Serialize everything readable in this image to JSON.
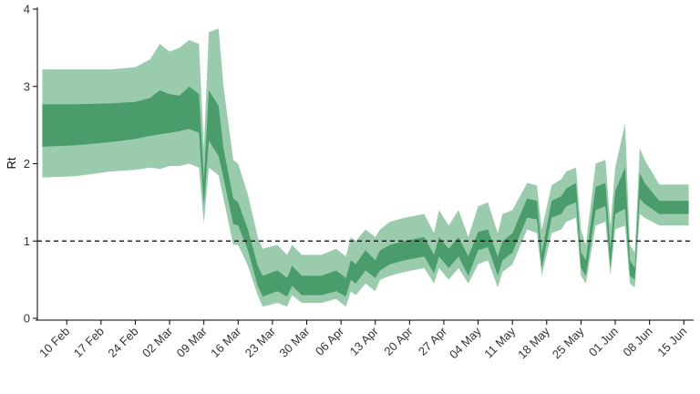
{
  "chart_data": {
    "type": "area",
    "ylabel": "Rt",
    "xlabel": "",
    "ylim": [
      0,
      4
    ],
    "xlim": [
      "2020-02-04",
      "2020-06-17"
    ],
    "y_ticks": [
      "0",
      "1",
      "2",
      "3",
      "4"
    ],
    "x_ticks": [
      "10 Feb",
      "17 Feb",
      "24 Feb",
      "02 Mar",
      "09 Mar",
      "16 Mar",
      "23 Mar",
      "30 Mar",
      "06 Apr",
      "13 Apr",
      "20 Apr",
      "27 Apr",
      "04 May",
      "11 May",
      "18 May",
      "25 May",
      "01 Jun",
      "08 Jun",
      "15 Jun"
    ],
    "x_tick_dates": [
      "2020-02-10",
      "2020-02-17",
      "2020-02-24",
      "2020-03-02",
      "2020-03-09",
      "2020-03-16",
      "2020-03-23",
      "2020-03-30",
      "2020-04-06",
      "2020-04-13",
      "2020-04-20",
      "2020-04-27",
      "2020-05-04",
      "2020-05-11",
      "2020-05-18",
      "2020-05-25",
      "2020-06-01",
      "2020-06-08",
      "2020-06-15"
    ],
    "reference_line": {
      "y": 1,
      "style": "dashed"
    },
    "grid": false,
    "legend": "none",
    "colors": {
      "outer_band": "#9acbad",
      "inner_band": "#4a9d6b",
      "reference_line": "#000000"
    },
    "x": [
      "2020-02-05",
      "2020-02-12",
      "2020-02-19",
      "2020-02-24",
      "2020-02-27",
      "2020-02-29",
      "2020-03-02",
      "2020-03-04",
      "2020-03-06",
      "2020-03-08",
      "2020-03-09",
      "2020-03-10",
      "2020-03-12",
      "2020-03-13",
      "2020-03-15",
      "2020-03-16",
      "2020-03-18",
      "2020-03-20",
      "2020-03-21",
      "2020-03-24",
      "2020-03-26",
      "2020-03-27",
      "2020-03-29",
      "2020-03-31",
      "2020-04-02",
      "2020-04-05",
      "2020-04-07",
      "2020-04-08",
      "2020-04-09",
      "2020-04-11",
      "2020-04-13",
      "2020-04-14",
      "2020-04-16",
      "2020-04-19",
      "2020-04-23",
      "2020-04-25",
      "2020-04-26",
      "2020-04-28",
      "2020-04-30",
      "2020-05-02",
      "2020-05-04",
      "2020-05-06",
      "2020-05-08",
      "2020-05-09",
      "2020-05-11",
      "2020-05-14",
      "2020-05-16",
      "2020-05-17",
      "2020-05-19",
      "2020-05-21",
      "2020-05-22",
      "2020-05-24",
      "2020-05-25",
      "2020-05-26",
      "2020-05-28",
      "2020-05-30",
      "2020-05-31",
      "2020-06-01",
      "2020-06-03",
      "2020-06-04",
      "2020-06-05",
      "2020-06-06",
      "2020-06-07",
      "2020-06-10",
      "2020-06-16"
    ],
    "lower_90": [
      1.82,
      1.84,
      1.9,
      1.92,
      1.95,
      1.93,
      1.97,
      1.97,
      2.0,
      1.95,
      1.22,
      1.95,
      1.85,
      1.55,
      0.95,
      0.95,
      0.68,
      0.3,
      0.15,
      0.2,
      0.15,
      0.3,
      0.2,
      0.2,
      0.2,
      0.25,
      0.15,
      0.35,
      0.3,
      0.45,
      0.35,
      0.5,
      0.55,
      0.6,
      0.65,
      0.45,
      0.65,
      0.5,
      0.65,
      0.45,
      0.7,
      0.75,
      0.4,
      0.6,
      0.7,
      1.15,
      1.1,
      0.55,
      1.1,
      1.15,
      1.25,
      1.3,
      0.55,
      0.45,
      1.2,
      1.25,
      0.55,
      1.15,
      1.2,
      0.45,
      0.4,
      1.35,
      1.3,
      1.2,
      1.2
    ],
    "lower_50": [
      2.22,
      2.24,
      2.28,
      2.32,
      2.36,
      2.38,
      2.4,
      2.42,
      2.45,
      2.4,
      1.45,
      2.3,
      2.1,
      1.82,
      1.22,
      1.2,
      0.88,
      0.42,
      0.28,
      0.35,
      0.28,
      0.42,
      0.3,
      0.3,
      0.3,
      0.35,
      0.28,
      0.5,
      0.45,
      0.62,
      0.52,
      0.62,
      0.7,
      0.75,
      0.8,
      0.58,
      0.8,
      0.65,
      0.8,
      0.55,
      0.88,
      0.92,
      0.55,
      0.75,
      0.85,
      1.3,
      1.28,
      0.65,
      1.3,
      1.35,
      1.45,
      1.5,
      0.65,
      0.55,
      1.4,
      1.45,
      0.65,
      1.35,
      1.42,
      0.55,
      0.5,
      1.55,
      1.48,
      1.35,
      1.35
    ],
    "upper_50": [
      2.77,
      2.77,
      2.78,
      2.8,
      2.85,
      2.95,
      2.9,
      2.88,
      3.0,
      2.9,
      1.8,
      2.95,
      2.75,
      2.2,
      1.55,
      1.5,
      1.15,
      0.68,
      0.55,
      0.62,
      0.52,
      0.68,
      0.55,
      0.55,
      0.55,
      0.62,
      0.52,
      0.75,
      0.7,
      0.88,
      0.75,
      0.88,
      0.95,
      1.0,
      1.05,
      0.82,
      1.05,
      0.9,
      1.05,
      0.8,
      1.12,
      1.15,
      0.8,
      1.0,
      1.1,
      1.55,
      1.52,
      0.85,
      1.52,
      1.58,
      1.68,
      1.75,
      0.85,
      0.75,
      1.7,
      1.75,
      0.9,
      1.65,
      1.95,
      0.75,
      0.65,
      1.88,
      1.75,
      1.52,
      1.52
    ],
    "upper_90": [
      3.22,
      3.22,
      3.22,
      3.25,
      3.35,
      3.55,
      3.45,
      3.5,
      3.6,
      3.55,
      2.2,
      3.7,
      3.75,
      3.0,
      2.05,
      2.0,
      1.6,
      1.05,
      0.9,
      0.95,
      0.82,
      0.95,
      0.82,
      0.82,
      0.82,
      0.9,
      0.8,
      1.05,
      1.0,
      1.15,
      1.05,
      1.15,
      1.25,
      1.3,
      1.35,
      1.1,
      1.4,
      1.2,
      1.4,
      1.05,
      1.45,
      1.5,
      1.1,
      1.35,
      1.4,
      1.75,
      1.72,
      1.15,
      1.72,
      1.8,
      1.9,
      1.95,
      1.15,
      0.95,
      2.0,
      2.05,
      1.2,
      1.95,
      2.52,
      0.95,
      0.85,
      2.2,
      2.05,
      1.73,
      1.73
    ]
  }
}
